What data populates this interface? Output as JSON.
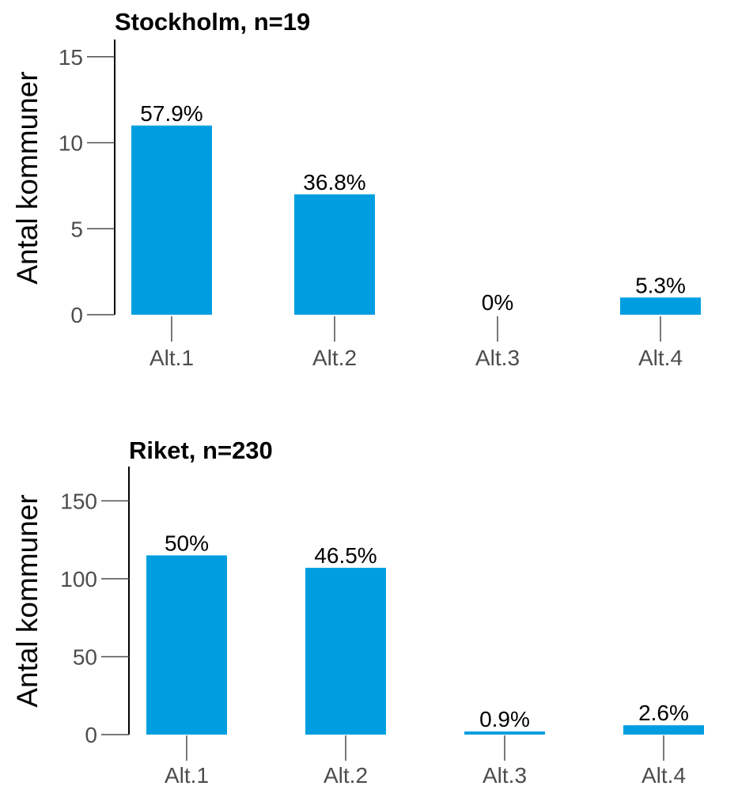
{
  "chart_data": [
    {
      "type": "bar",
      "title": "Stockholm, n=19",
      "ylabel": "Antal kommuner",
      "xlabel": "",
      "categories": [
        "Alt.1",
        "Alt.2",
        "Alt.3",
        "Alt.4"
      ],
      "values": [
        11,
        7,
        0,
        1
      ],
      "data_labels": [
        "57.9%",
        "36.8%",
        "0%",
        "5.3%"
      ],
      "yticks": [
        0,
        5,
        10,
        15
      ],
      "ylim": [
        0,
        16
      ],
      "color": "#009ee0",
      "grid": false,
      "legend": "none"
    },
    {
      "type": "bar",
      "title": "Riket, n=230",
      "ylabel": "Antal kommuner",
      "xlabel": "",
      "categories": [
        "Alt.1",
        "Alt.2",
        "Alt.3",
        "Alt.4"
      ],
      "values": [
        115,
        107,
        2,
        6
      ],
      "data_labels": [
        "50%",
        "46.5%",
        "0.9%",
        "2.6%"
      ],
      "yticks": [
        0,
        50,
        100,
        150
      ],
      "ylim": [
        0,
        172
      ],
      "color": "#009ee0",
      "grid": false,
      "legend": "none"
    }
  ]
}
